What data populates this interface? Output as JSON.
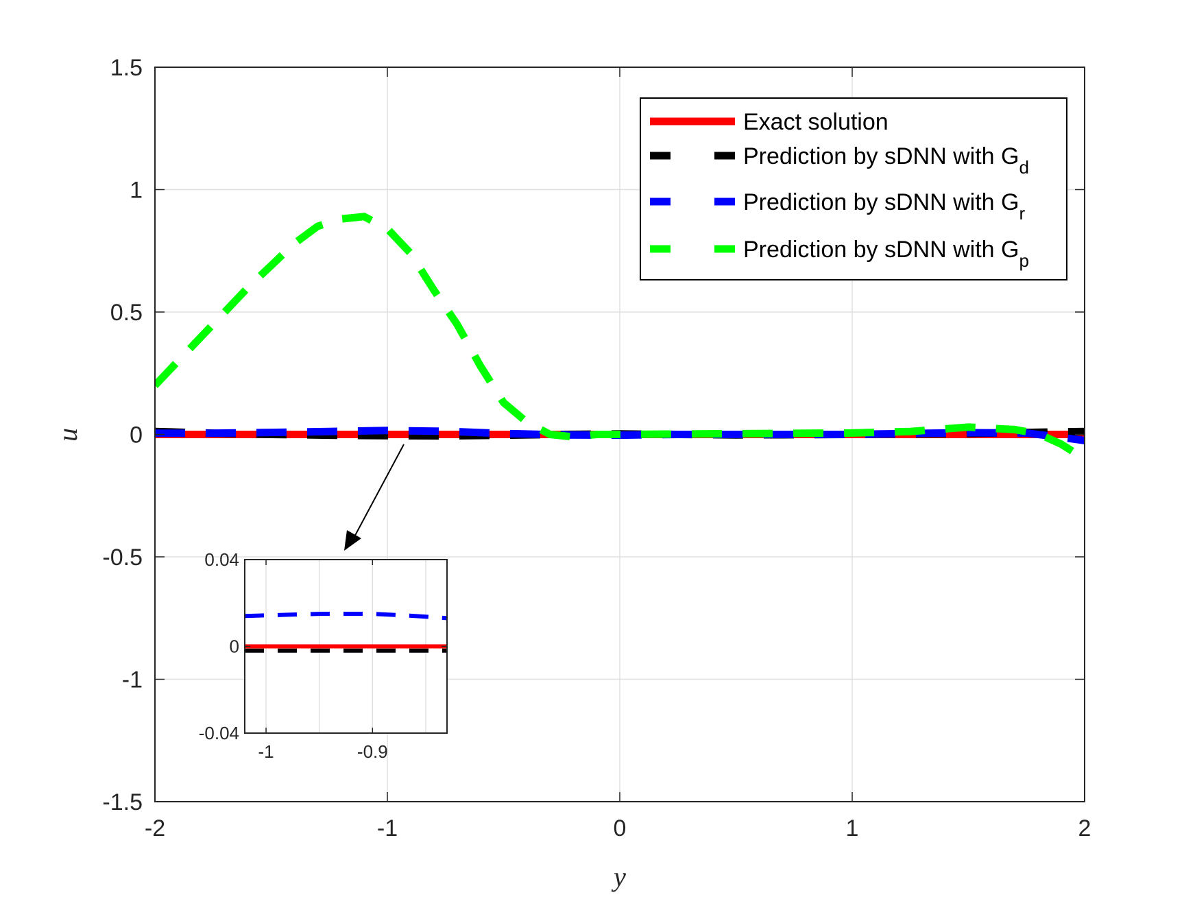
{
  "chart_data": {
    "type": "line",
    "xlabel": "y",
    "ylabel": "u",
    "xlim": [
      -2,
      2
    ],
    "ylim": [
      -1.5,
      1.5
    ],
    "xticks": [
      "-2",
      "-1",
      "0",
      "1",
      "2"
    ],
    "yticks": [
      "-1.5",
      "-1",
      "-0.5",
      "0",
      "0.5",
      "1",
      "1.5"
    ],
    "grid": true,
    "legend_position": "top-right",
    "series": [
      {
        "name": "Exact solution",
        "color": "#ff0000",
        "style": "solid",
        "x": [
          -2,
          -1.5,
          -1,
          -0.5,
          0,
          0.5,
          1,
          1.5,
          2
        ],
        "y": [
          0,
          0,
          0,
          0,
          0,
          0,
          0,
          0,
          0
        ]
      },
      {
        "name": "Prediction by sDNN with G",
        "subscript": "d",
        "color": "#000000",
        "style": "dashed",
        "x": [
          -2,
          -1.75,
          -1.5,
          -1.25,
          -1,
          -0.75,
          -0.5,
          -0.25,
          0,
          0.25,
          0.5,
          0.75,
          1,
          1.25,
          1.5,
          1.75,
          2
        ],
        "y": [
          0.012,
          0.005,
          0.0,
          -0.003,
          -0.005,
          -0.006,
          -0.003,
          0.0,
          0.002,
          0.0,
          -0.002,
          -0.001,
          0.0,
          0.002,
          0.004,
          0.008,
          0.012
        ]
      },
      {
        "name": "Prediction by sDNN with G",
        "subscript": "r",
        "color": "#0000ff",
        "style": "dashed",
        "x": [
          -2,
          -1.75,
          -1.5,
          -1.25,
          -1,
          -0.75,
          -0.5,
          -0.25,
          0,
          0.25,
          0.5,
          0.75,
          1,
          1.25,
          1.5,
          1.75,
          1.9,
          2
        ],
        "y": [
          0.005,
          0.005,
          0.008,
          0.012,
          0.016,
          0.013,
          0.004,
          -0.002,
          -0.003,
          0.0,
          0.0,
          0.0,
          0.0,
          0.004,
          0.007,
          0.006,
          -0.012,
          -0.025
        ]
      },
      {
        "name": "Prediction by sDNN with G",
        "subscript": "p",
        "color": "#00ff00",
        "style": "dashed",
        "x": [
          -2,
          -1.9,
          -1.8,
          -1.7,
          -1.6,
          -1.5,
          -1.4,
          -1.3,
          -1.2,
          -1.1,
          -1.0,
          -0.9,
          -0.8,
          -0.7,
          -0.6,
          -0.5,
          -0.4,
          -0.3,
          -0.2,
          -0.1,
          0,
          0.5,
          1.0,
          1.25,
          1.5,
          1.7,
          1.8,
          1.9,
          2.0
        ],
        "y": [
          0.2,
          0.3,
          0.4,
          0.5,
          0.6,
          0.69,
          0.78,
          0.85,
          0.88,
          0.89,
          0.84,
          0.74,
          0.59,
          0.45,
          0.28,
          0.13,
          0.05,
          0.0,
          -0.01,
          0.0,
          0.0,
          0.003,
          0.006,
          0.012,
          0.03,
          0.02,
          0.003,
          -0.04,
          -0.1
        ]
      }
    ],
    "inset": {
      "xlim": [
        -1.02,
        -0.83
      ],
      "ylim": [
        -0.04,
        0.04
      ],
      "xticks": [
        "-1",
        "-0.9"
      ],
      "yticks": [
        "-0.04",
        "0",
        "0.04"
      ],
      "series": [
        {
          "color": "#ff0000",
          "style": "solid",
          "x": [
            -1.02,
            -0.83
          ],
          "y": [
            0.0,
            0.0
          ]
        },
        {
          "color": "#000000",
          "style": "dashed",
          "x": [
            -1.02,
            -0.83
          ],
          "y": [
            -0.002,
            -0.002
          ]
        },
        {
          "color": "#0000ff",
          "style": "dashed",
          "x": [
            -1.02,
            -0.95,
            -0.9,
            -0.86,
            -0.83
          ],
          "y": [
            0.014,
            0.015,
            0.015,
            0.014,
            0.013
          ]
        }
      ]
    }
  }
}
